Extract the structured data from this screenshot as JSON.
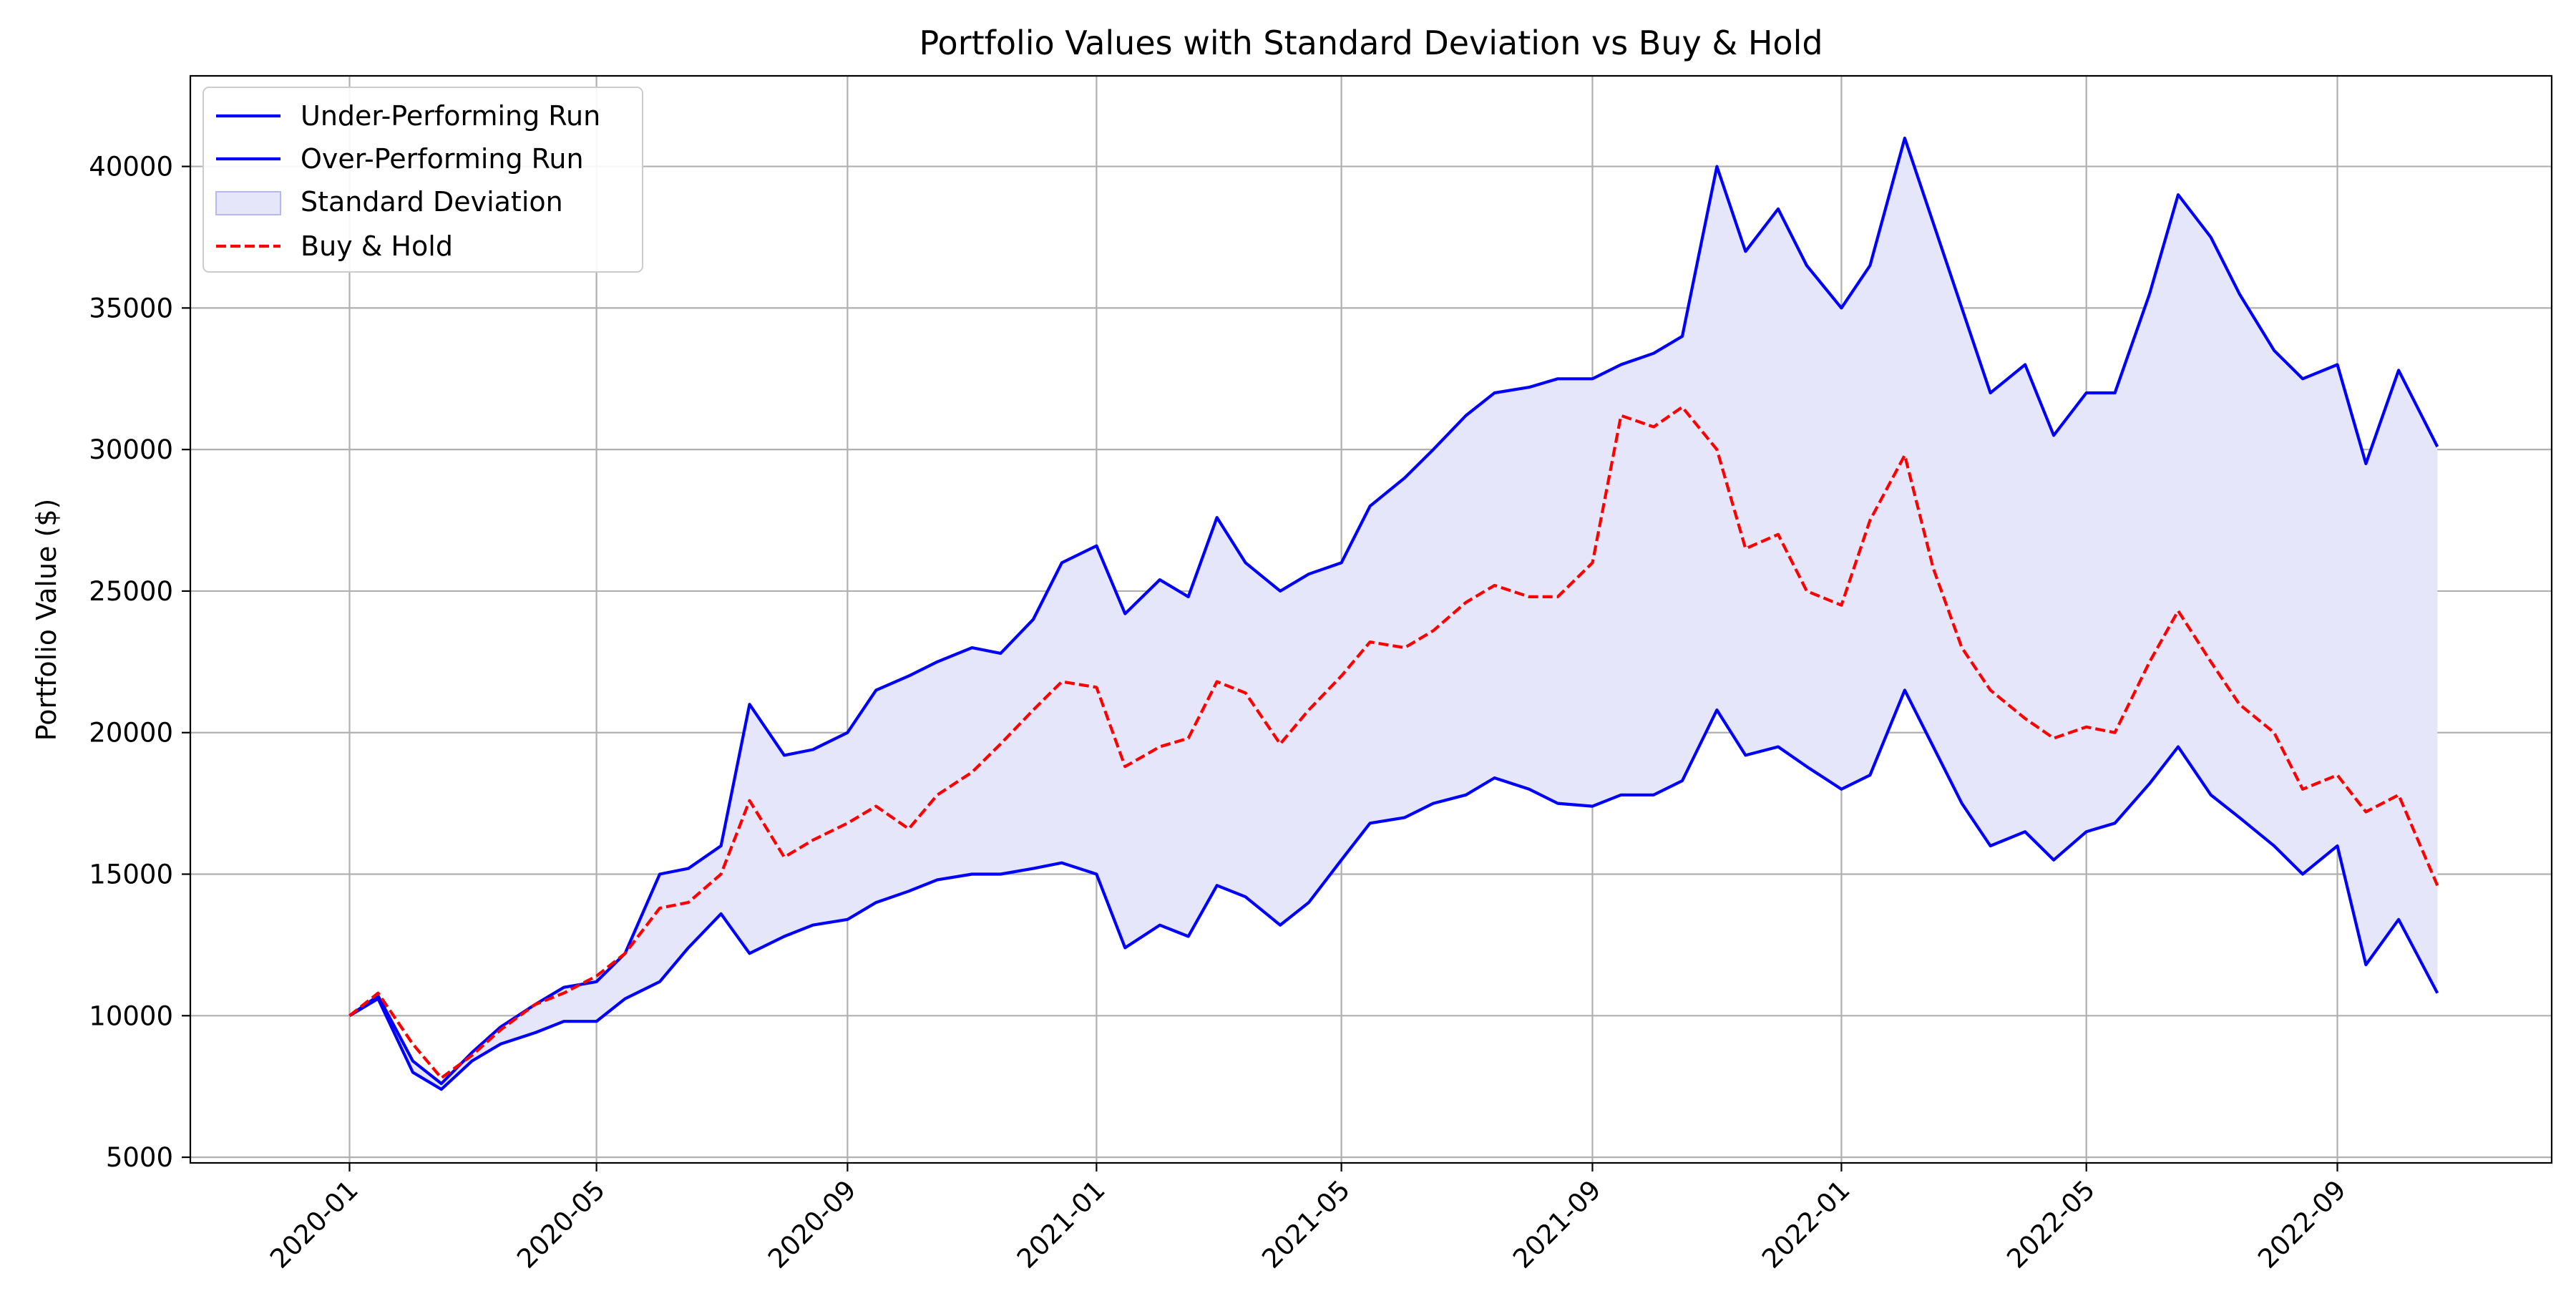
{
  "chart_data": {
    "type": "line",
    "title": "Portfolio Values with Standard Deviation vs Buy & Hold",
    "xlabel": "",
    "ylabel": "Portfolio Value ($)",
    "x_range": [
      "2019-10-15",
      "2022-12-15"
    ],
    "ylim": [
      4800,
      43200
    ],
    "grid": true,
    "legend_position": "top-left",
    "x_ticks": [
      "2020-01",
      "2020-05",
      "2020-09",
      "2021-01",
      "2021-05",
      "2021-09",
      "2022-01",
      "2022-05",
      "2022-09"
    ],
    "y_ticks": [
      5000,
      10000,
      15000,
      20000,
      25000,
      30000,
      35000,
      40000
    ],
    "legend": [
      {
        "label": "Under-Performing Run",
        "style": "line",
        "color": "#0000ff"
      },
      {
        "label": "Over-Performing Run",
        "style": "line",
        "color": "#0000ff"
      },
      {
        "label": "Standard Deviation",
        "style": "band",
        "color": "#e6e6fa"
      },
      {
        "label": "Buy & Hold",
        "style": "dashed",
        "color": "#ff0000"
      }
    ],
    "colors": {
      "run_line": "#0000ff",
      "band_fill": "#e6e6fa",
      "buy_hold": "#ff0000",
      "grid": "#b0b0b0"
    },
    "x": [
      "2020-01-01",
      "2020-01-15",
      "2020-02-01",
      "2020-02-15",
      "2020-03-01",
      "2020-03-15",
      "2020-04-01",
      "2020-04-15",
      "2020-05-01",
      "2020-05-15",
      "2020-06-01",
      "2020-06-15",
      "2020-07-01",
      "2020-07-15",
      "2020-08-01",
      "2020-08-15",
      "2020-09-01",
      "2020-09-15",
      "2020-10-01",
      "2020-10-15",
      "2020-11-01",
      "2020-11-15",
      "2020-12-01",
      "2020-12-15",
      "2021-01-01",
      "2021-01-15",
      "2021-02-01",
      "2021-02-15",
      "2021-03-01",
      "2021-03-15",
      "2021-04-01",
      "2021-04-15",
      "2021-05-01",
      "2021-05-15",
      "2021-06-01",
      "2021-06-15",
      "2021-07-01",
      "2021-07-15",
      "2021-08-01",
      "2021-08-15",
      "2021-09-01",
      "2021-09-15",
      "2021-10-01",
      "2021-10-15",
      "2021-11-01",
      "2021-11-15",
      "2021-12-01",
      "2021-12-15",
      "2022-01-01",
      "2022-01-15",
      "2022-02-01",
      "2022-02-15",
      "2022-03-01",
      "2022-03-15",
      "2022-04-01",
      "2022-04-15",
      "2022-05-01",
      "2022-05-15",
      "2022-06-01",
      "2022-06-15",
      "2022-07-01",
      "2022-07-15",
      "2022-08-01",
      "2022-08-15",
      "2022-09-01",
      "2022-09-15",
      "2022-10-01",
      "2022-10-20"
    ],
    "series": [
      {
        "name": "Under-Performing Run",
        "values": [
          10000,
          10600,
          8000,
          7400,
          8400,
          9000,
          9400,
          9800,
          9800,
          10600,
          11200,
          12400,
          13600,
          12200,
          12800,
          13200,
          13400,
          14000,
          14400,
          14800,
          15000,
          15000,
          15200,
          15400,
          15000,
          12400,
          13200,
          12800,
          14600,
          14200,
          13200,
          14000,
          15500,
          16800,
          17000,
          17500,
          17800,
          18400,
          18000,
          17500,
          17400,
          17800,
          17800,
          18300,
          20800,
          19200,
          19500,
          18800,
          18000,
          18500,
          21500,
          19500,
          17500,
          16000,
          16500,
          15500,
          16500,
          16800,
          18200,
          19500,
          17800,
          17000,
          16000,
          15000,
          16000,
          11800,
          13400,
          10800
        ]
      },
      {
        "name": "Over-Performing Run",
        "values": [
          10000,
          10700,
          8400,
          7600,
          8700,
          9600,
          10400,
          11000,
          11200,
          12200,
          15000,
          15200,
          16000,
          21000,
          19200,
          19400,
          20000,
          21500,
          22000,
          22500,
          23000,
          22800,
          24000,
          26000,
          26600,
          24200,
          25400,
          24800,
          27600,
          26000,
          25000,
          25600,
          26000,
          28000,
          29000,
          30000,
          31200,
          32000,
          32200,
          32500,
          32500,
          33000,
          33400,
          34000,
          40000,
          37000,
          38500,
          36500,
          35000,
          36500,
          41000,
          38000,
          35000,
          32000,
          33000,
          30500,
          32000,
          32000,
          35500,
          39000,
          37500,
          35500,
          33500,
          32500,
          33000,
          29500,
          32800,
          30100
        ]
      },
      {
        "name": "Buy & Hold",
        "values": [
          10000,
          10800,
          9000,
          7800,
          8600,
          9500,
          10400,
          10800,
          11400,
          12200,
          13800,
          14000,
          15000,
          17600,
          15600,
          16200,
          16800,
          17400,
          16600,
          17800,
          18600,
          19600,
          20800,
          21800,
          21600,
          18800,
          19500,
          19800,
          21800,
          21400,
          19600,
          20800,
          22000,
          23200,
          23000,
          23600,
          24600,
          25200,
          24800,
          24800,
          26000,
          31200,
          30800,
          31500,
          30000,
          26500,
          27000,
          25000,
          24500,
          27500,
          29800,
          25800,
          23000,
          21500,
          20500,
          19800,
          20200,
          20000,
          22500,
          24300,
          22500,
          21000,
          20000,
          18000,
          18500,
          17200,
          17800,
          14600
        ]
      }
    ]
  }
}
